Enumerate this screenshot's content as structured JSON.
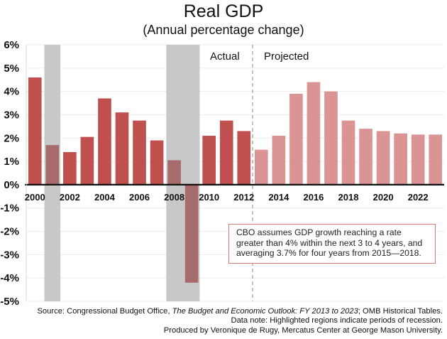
{
  "chart_data": {
    "type": "bar",
    "title": "Real GDP",
    "subtitle": "(Annual percentage change)",
    "xlabel": "",
    "ylabel": "",
    "ylim": [
      -5,
      6
    ],
    "yticks": [
      6,
      5,
      4,
      3,
      2,
      1,
      0,
      -1,
      -2,
      -3,
      -4,
      -5
    ],
    "ytick_labels": [
      "6%",
      "5%",
      "4%",
      "3%",
      "2%",
      "1%",
      "0%",
      "-1%",
      "-2%",
      "-3%",
      "-4%",
      "-5%"
    ],
    "grid": true,
    "categories": [
      "2000",
      "2001",
      "2002",
      "2003",
      "2004",
      "2005",
      "2006",
      "2007",
      "2008",
      "2009",
      "2010",
      "2011",
      "2012",
      "2013",
      "2014",
      "2015",
      "2016",
      "2017",
      "2018",
      "2019",
      "2020",
      "2021",
      "2022",
      "2023"
    ],
    "xtick_labels": [
      "2000",
      "2002",
      "2004",
      "2006",
      "2008",
      "2010",
      "2012",
      "2014",
      "2016",
      "2018",
      "2020",
      "2022"
    ],
    "series": [
      {
        "name": "Actual",
        "color": "#c0504d",
        "recession_color": "#a86b6b",
        "values": [
          4.6,
          1.7,
          1.4,
          2.05,
          3.7,
          3.1,
          2.75,
          1.9,
          1.05,
          -4.2,
          2.1,
          2.75,
          2.3,
          null,
          null,
          null,
          null,
          null,
          null,
          null,
          null,
          null,
          null,
          null
        ]
      },
      {
        "name": "Projected",
        "color": "#d99493",
        "values": [
          null,
          null,
          null,
          null,
          null,
          null,
          null,
          null,
          null,
          null,
          null,
          null,
          null,
          1.5,
          2.1,
          3.9,
          4.4,
          4.0,
          2.75,
          2.4,
          2.3,
          2.2,
          2.15,
          2.15
        ]
      }
    ],
    "recessions": [
      {
        "start": "2001",
        "end": "2001"
      },
      {
        "start": "2008",
        "end": "2009"
      }
    ],
    "recession_color": "#c8c8c8",
    "divider_after": "2012",
    "region_labels": [
      "Actual",
      "Projected"
    ],
    "annotation": "CBO assumes GDP growth reaching a rate greater than 4% within  the next 3 to 4 years, and averaging 3.7% for four years from 2015—2018."
  },
  "footer": {
    "source_prefix": "Source: Congressional Budget Office, ",
    "source_title": "The Budget and Economic Outlook: FY 2013 to 2023",
    "source_suffix": "; OMB Historical Tables.",
    "data_note": "Data note: Highlighted regions indicate periods of recession.",
    "produced_by": "Produced by Veronique de Rugy, Mercatus Center at George Mason University."
  }
}
